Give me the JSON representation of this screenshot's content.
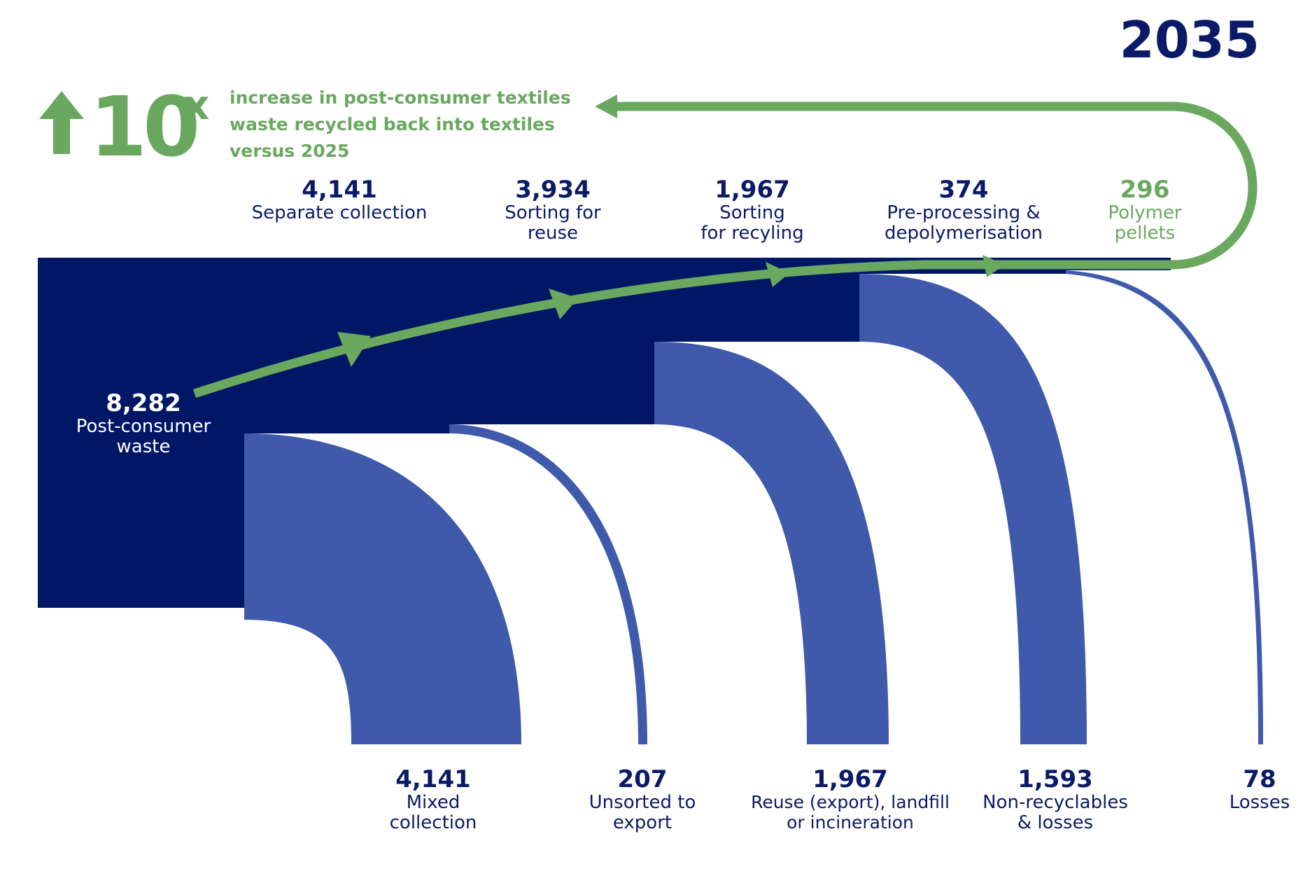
{
  "year": "2035",
  "headline": {
    "arrow_icon": "up-arrow-icon",
    "multiplier": "10",
    "suffix": "x",
    "lines": [
      "increase in post-consumer textiles",
      "waste recycled back into textiles",
      "versus 2025"
    ]
  },
  "colors": {
    "navy": "#001766",
    "flow_blue": "#3f5aaa",
    "green": "#6aa85f"
  },
  "stages": {
    "source": {
      "value": "8,282",
      "label": [
        "Post-consumer",
        "waste"
      ]
    },
    "separate": {
      "value": "4,141",
      "label": [
        "Separate collection"
      ]
    },
    "sorting_reuse": {
      "value": "3,934",
      "label": [
        "Sorting for",
        "reuse"
      ]
    },
    "sorting_recycling": {
      "value": "1,967",
      "label": [
        "Sorting",
        "for recyling"
      ]
    },
    "preprocessing": {
      "value": "374",
      "label": [
        "Pre-processing &",
        "depolymerisation"
      ]
    },
    "pellets": {
      "value": "296",
      "label": [
        "Polymer",
        "pellets"
      ]
    }
  },
  "outputs": {
    "mixed": {
      "value": "4,141",
      "label": [
        "Mixed",
        "collection"
      ]
    },
    "unsorted": {
      "value": "207",
      "label": [
        "Unsorted to",
        "export"
      ]
    },
    "reuse_export": {
      "value": "1,967",
      "label": [
        "Reuse (export), landfill",
        "or incineration"
      ]
    },
    "non_recyclables": {
      "value": "1,593",
      "label": [
        "Non-recyclables",
        "& losses"
      ]
    },
    "losses": {
      "value": "78",
      "label": [
        "Losses"
      ]
    }
  }
}
